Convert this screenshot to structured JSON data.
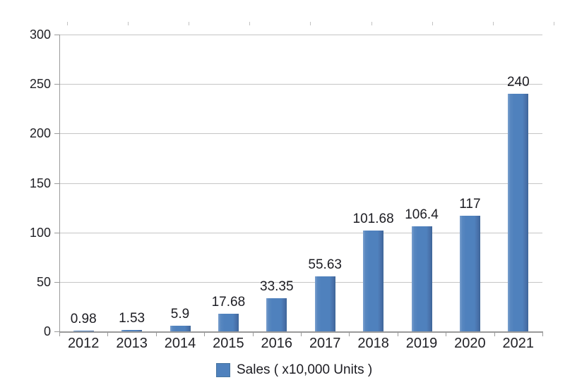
{
  "chart_data": {
    "type": "bar",
    "title": "",
    "xlabel": "",
    "ylabel": "",
    "categories": [
      "2012",
      "2013",
      "2014",
      "2015",
      "2016",
      "2017",
      "2018",
      "2019",
      "2020",
      "2021"
    ],
    "series": [
      {
        "name": "Sales ( x10,000 Units )",
        "values": [
          0.98,
          1.53,
          5.9,
          17.68,
          33.35,
          55.63,
          101.68,
          106.4,
          117,
          240
        ],
        "labels": [
          "0.98",
          "1.53",
          "5.9",
          "17.68",
          "33.35",
          "55.63",
          "101.68",
          "106.4",
          "117",
          "240"
        ]
      }
    ],
    "ylim": [
      0,
      300
    ],
    "yticks": [
      0,
      50,
      100,
      150,
      200,
      250,
      300
    ],
    "grid": "horizontal",
    "legend_position": "bottom",
    "colors": {
      "bar": "#4f81bd",
      "bar_highlight": "#7ca1ce",
      "bar_shadow": "#3d6597",
      "gridline": "#c5c5c5",
      "axis": "#9a9a9a",
      "top_tick": "#c2c2c2",
      "text": "#212126",
      "background": "#ffffff"
    }
  }
}
